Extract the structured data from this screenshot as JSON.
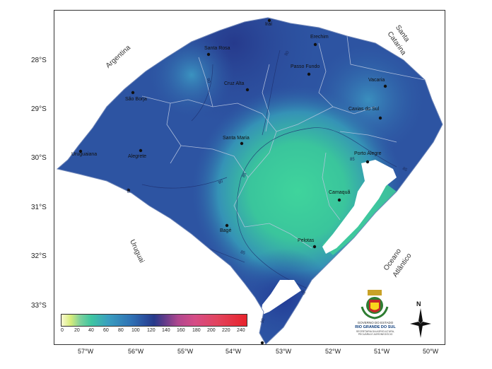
{
  "latitudes": [
    "28°S",
    "29°S",
    "30°S",
    "31°S",
    "32°S",
    "33°S"
  ],
  "longitudes": [
    "57°W",
    "56°W",
    "55°W",
    "54°W",
    "53°W",
    "52°W",
    "51°W",
    "50°W"
  ],
  "countries": {
    "argentina": "Argentina",
    "uruguai": "Uruguai",
    "santa_catarina_line1": "Santa",
    "santa_catarina_line2": "Catarina",
    "oceano_line1": "Oceano",
    "oceano_line2": "Atlântico"
  },
  "cities": {
    "irai": "Iraí",
    "erechim": "Erechim",
    "santa_rosa": "Santa Rosa",
    "passo_fundo": "Passo Fundo",
    "cruz_alta": "Cruz Alta",
    "vacaria": "Vacaria",
    "sao_borja": "São Borja",
    "caxias": "Caxias do Sul",
    "santa_maria": "Santa Maria",
    "uruguaiana": "Uruguaiana",
    "alegrete": "Alegrete",
    "porto_alegre": "Porto Alegre",
    "camaqua": "Camaquã",
    "bage": "Bagé",
    "pelotas": "Pelotas"
  },
  "isolines": [
    "90",
    "90",
    "90",
    "85",
    "85",
    "85",
    "85",
    "85",
    "90",
    "90"
  ],
  "legend": {
    "ticks": [
      "0",
      "20",
      "40",
      "60",
      "80",
      "100",
      "120",
      "140",
      "160",
      "180",
      "200",
      "220",
      "240"
    ]
  },
  "north": "N",
  "government": {
    "line1": "GOVERNO DO ESTADO",
    "line2": "RIO GRANDE DO SUL",
    "line3": "SECRETARIA DA AGRICULTURA, PECUÁRIA E AGRONEGÓCIO"
  },
  "colors": {
    "deep_blue": "#273c8e",
    "mid_blue": "#2f5ea8",
    "light_blue": "#3a86b8",
    "green": "#3fcf9a",
    "lagoon": "#ffffff"
  }
}
